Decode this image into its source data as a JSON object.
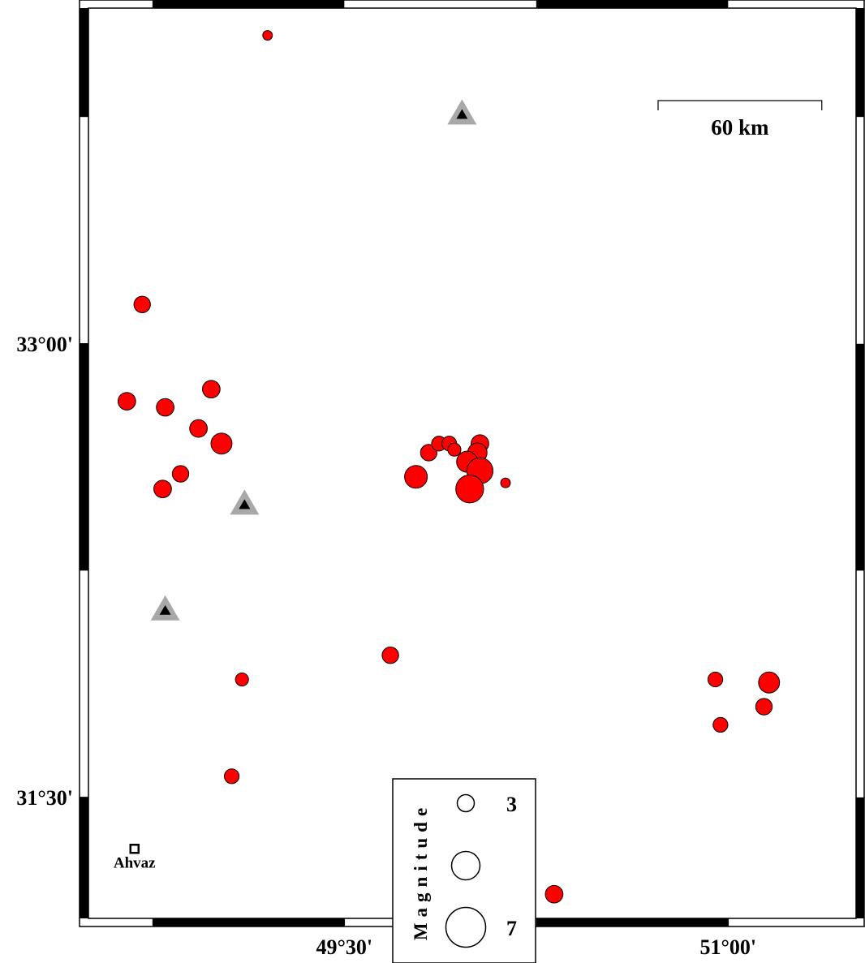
{
  "map": {
    "xlim": [
      48.5,
      51.5
    ],
    "ylim": [
      31.1,
      34.11
    ],
    "frame_interval": 0.75,
    "xticks": [
      {
        "value": 49.5,
        "label": "49°30'"
      },
      {
        "value": 51,
        "label": "51°00'"
      }
    ],
    "yticks": [
      {
        "value": 33,
        "label": "33°00'"
      },
      {
        "value": 31.5,
        "label": "31°30'"
      }
    ],
    "event_color": "#ff0000",
    "events": [
      {
        "lon": 49.2,
        "lat": 34.02,
        "magnitude": 1.7
      },
      {
        "lon": 48.71,
        "lat": 33.13,
        "magnitude": 2.9
      },
      {
        "lon": 48.65,
        "lat": 32.81,
        "magnitude": 3.1
      },
      {
        "lon": 48.8,
        "lat": 32.79,
        "magnitude": 3.1
      },
      {
        "lon": 48.98,
        "lat": 32.85,
        "magnitude": 3.1
      },
      {
        "lon": 48.93,
        "lat": 32.72,
        "magnitude": 3.1
      },
      {
        "lon": 49.02,
        "lat": 32.67,
        "magnitude": 3.7
      },
      {
        "lon": 48.86,
        "lat": 32.57,
        "magnitude": 2.9
      },
      {
        "lon": 48.79,
        "lat": 32.52,
        "magnitude": 3.1
      },
      {
        "lon": 49.83,
        "lat": 32.64,
        "magnitude": 2.9
      },
      {
        "lon": 49.87,
        "lat": 32.67,
        "magnitude": 2.6
      },
      {
        "lon": 49.91,
        "lat": 32.67,
        "magnitude": 2.6
      },
      {
        "lon": 49.93,
        "lat": 32.65,
        "magnitude": 2.3
      },
      {
        "lon": 50.03,
        "lat": 32.67,
        "magnitude": 3.1
      },
      {
        "lon": 50.02,
        "lat": 32.64,
        "magnitude": 3.4
      },
      {
        "lon": 49.98,
        "lat": 32.61,
        "magnitude": 3.7
      },
      {
        "lon": 50.03,
        "lat": 32.58,
        "magnitude": 4.6
      },
      {
        "lon": 49.78,
        "lat": 32.56,
        "magnitude": 4.0
      },
      {
        "lon": 49.99,
        "lat": 32.52,
        "magnitude": 4.9
      },
      {
        "lon": 50.13,
        "lat": 32.54,
        "magnitude": 1.7
      },
      {
        "lon": 49.68,
        "lat": 31.97,
        "magnitude": 2.9
      },
      {
        "lon": 49.1,
        "lat": 31.89,
        "magnitude": 2.3
      },
      {
        "lon": 49.06,
        "lat": 31.57,
        "magnitude": 2.6
      },
      {
        "lon": 50.95,
        "lat": 31.89,
        "magnitude": 2.6
      },
      {
        "lon": 51.16,
        "lat": 31.88,
        "magnitude": 3.7
      },
      {
        "lon": 51.14,
        "lat": 31.8,
        "magnitude": 2.9
      },
      {
        "lon": 50.97,
        "lat": 31.74,
        "magnitude": 2.6
      },
      {
        "lon": 50.32,
        "lat": 31.18,
        "magnitude": 3.1
      }
    ],
    "stations": [
      {
        "lon": 49.96,
        "lat": 33.76
      },
      {
        "lon": 49.11,
        "lat": 32.47
      },
      {
        "lon": 48.8,
        "lat": 32.12
      }
    ],
    "city": {
      "name": "Ahvaz",
      "lon": 48.68,
      "lat": 31.33
    },
    "scale_bar": {
      "value": 60,
      "label": "60 km"
    },
    "legend": {
      "title": "Magnitude",
      "sizes": [
        3,
        5,
        7
      ],
      "labeled": [
        true,
        false,
        true
      ]
    }
  }
}
